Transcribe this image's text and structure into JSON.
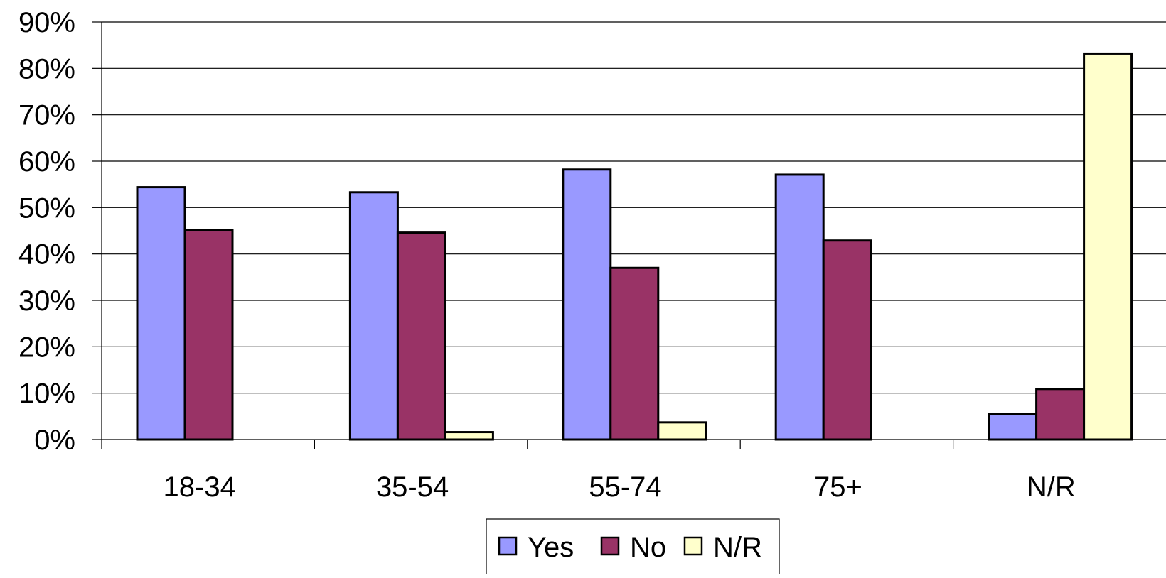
{
  "chart_data": {
    "type": "bar",
    "title": "",
    "xlabel": "",
    "ylabel": "",
    "categories": [
      "18-34",
      "35-54",
      "55-74",
      "75+",
      "N/R"
    ],
    "series": [
      {
        "name": "Yes",
        "color": "#9999ff",
        "values": [
          54.4,
          53.3,
          58.2,
          57.1,
          5.5
        ]
      },
      {
        "name": "No",
        "color": "#993366",
        "values": [
          45.2,
          44.6,
          37.0,
          42.9,
          10.9
        ]
      },
      {
        "name": "N/R",
        "color": "#ffffcc",
        "values": [
          0,
          1.6,
          3.7,
          0,
          83.2
        ]
      }
    ],
    "ylim": [
      0,
      90
    ],
    "yticks": [
      0,
      10,
      20,
      30,
      40,
      50,
      60,
      70,
      80,
      90
    ],
    "ytick_format": "percent",
    "grid": true,
    "legend_position": "bottom-center"
  }
}
